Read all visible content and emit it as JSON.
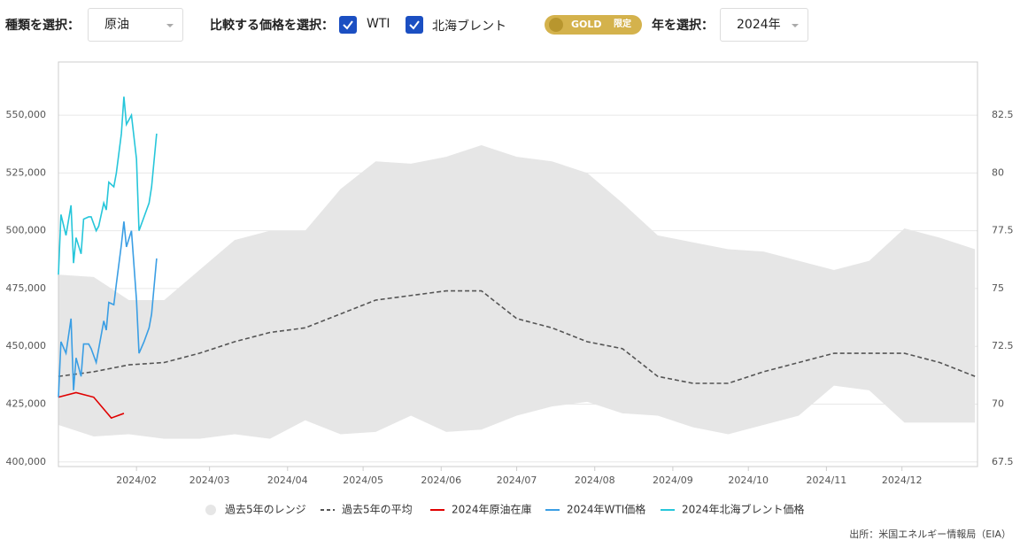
{
  "controls": {
    "type_label": "種類を選択：",
    "type_value": "原油",
    "compare_label": "比較する価格を選択：",
    "checks": [
      "WTI",
      "北海ブレント"
    ],
    "badge": "GOLD",
    "badge_tag": "限定",
    "year_label": "年を選択：",
    "year_value": "2024年"
  },
  "chart_data": {
    "type": "line",
    "xlim": [
      0,
      365
    ],
    "xticks": [
      {
        "value": 31,
        "label": "2024/02"
      },
      {
        "value": 60,
        "label": "2024/03"
      },
      {
        "value": 91,
        "label": "2024/04"
      },
      {
        "value": 121,
        "label": "2024/05"
      },
      {
        "value": 152,
        "label": "2024/06"
      },
      {
        "value": 182,
        "label": "2024/07"
      },
      {
        "value": 213,
        "label": "2024/08"
      },
      {
        "value": 244,
        "label": "2024/09"
      },
      {
        "value": 274,
        "label": "2024/10"
      },
      {
        "value": 305,
        "label": "2024/11"
      },
      {
        "value": 335,
        "label": "2024/12"
      }
    ],
    "ylim": [
      398000,
      573000
    ],
    "yticks": [
      {
        "value": 400000,
        "label": "400,000"
      },
      {
        "value": 425000,
        "label": "425,000"
      },
      {
        "value": 450000,
        "label": "450,000"
      },
      {
        "value": 475000,
        "label": "475,000"
      },
      {
        "value": 500000,
        "label": "500,000"
      },
      {
        "value": 525000,
        "label": "525,000"
      },
      {
        "value": 550000,
        "label": "550,000"
      }
    ],
    "y2lim": [
      67.3,
      84.8
    ],
    "y2ticks": [
      67.5,
      70,
      72.5,
      75,
      77.5,
      80,
      82.5
    ],
    "grid": true,
    "range": {
      "name": "過去5年のレンジ",
      "color": "#e6e6e6",
      "x": [
        0,
        14,
        28,
        42,
        56,
        70,
        84,
        98,
        112,
        126,
        140,
        154,
        168,
        182,
        196,
        210,
        224,
        238,
        252,
        266,
        280,
        294,
        308,
        322,
        336,
        350,
        364
      ],
      "high": [
        481000,
        480000,
        470000,
        470000,
        483000,
        496000,
        500000,
        500000,
        518000,
        530000,
        529000,
        532000,
        537000,
        532000,
        530000,
        525000,
        512000,
        498000,
        495000,
        492000,
        491000,
        487000,
        483000,
        487000,
        501000,
        497000,
        492000
      ],
      "low": [
        416000,
        411000,
        412000,
        410000,
        410000,
        412000,
        410000,
        418000,
        412000,
        413000,
        420000,
        413000,
        414000,
        420000,
        424000,
        426000,
        421000,
        420000,
        415000,
        412000,
        416000,
        420000,
        433000,
        431000,
        417000,
        417000,
        417000
      ]
    },
    "series": [
      {
        "name": "過去5年の平均",
        "color": "#555555",
        "dash": true,
        "x": [
          0,
          14,
          28,
          42,
          56,
          70,
          84,
          98,
          112,
          126,
          140,
          154,
          168,
          182,
          196,
          210,
          224,
          238,
          252,
          266,
          280,
          294,
          308,
          322,
          336,
          350,
          364
        ],
        "values": [
          437000,
          439000,
          442000,
          443000,
          447000,
          452000,
          456000,
          458000,
          464000,
          470000,
          472000,
          474000,
          474000,
          462000,
          458000,
          452000,
          449000,
          437000,
          434000,
          434000,
          439000,
          443000,
          447000,
          447000,
          447000,
          443000,
          437000
        ]
      },
      {
        "name": "2024年原油在庫",
        "color": "#e00000",
        "x": [
          0,
          7,
          14,
          21,
          26
        ],
        "values": [
          428000,
          430000,
          428000,
          419000,
          421000
        ]
      },
      {
        "name": "2024年WTI価格",
        "color": "#3a9ee4",
        "axis": "y2",
        "x": [
          0,
          1,
          3,
          5,
          6,
          7,
          9,
          10,
          12,
          13,
          15,
          16,
          18,
          19,
          20,
          22,
          23,
          25,
          26,
          27,
          29,
          31,
          32,
          34,
          36,
          37,
          39
        ],
        "values": [
          70.3,
          72.7,
          72.2,
          73.7,
          70.6,
          72.0,
          71.2,
          72.6,
          72.6,
          72.4,
          71.8,
          72.4,
          73.6,
          73.2,
          74.4,
          74.3,
          75.2,
          76.9,
          77.9,
          76.8,
          77.5,
          74.5,
          72.2,
          72.7,
          73.3,
          73.9,
          76.3
        ]
      },
      {
        "name": "2024年北海ブレント価格",
        "color": "#26c6da",
        "axis": "y2",
        "x": [
          0,
          1,
          3,
          5,
          6,
          7,
          9,
          10,
          12,
          13,
          15,
          16,
          18,
          19,
          20,
          22,
          23,
          25,
          26,
          27,
          29,
          31,
          32,
          34,
          36,
          37,
          39
        ],
        "values": [
          75.6,
          78.2,
          77.3,
          78.6,
          76.1,
          77.2,
          76.5,
          78.0,
          78.1,
          78.1,
          77.5,
          77.7,
          78.7,
          78.4,
          79.6,
          79.4,
          80.0,
          81.7,
          83.3,
          82.1,
          82.5,
          80.6,
          77.5,
          78.1,
          78.7,
          79.4,
          81.7
        ]
      }
    ],
    "source": "出所：米国エネルギー情報局（EIA）"
  }
}
